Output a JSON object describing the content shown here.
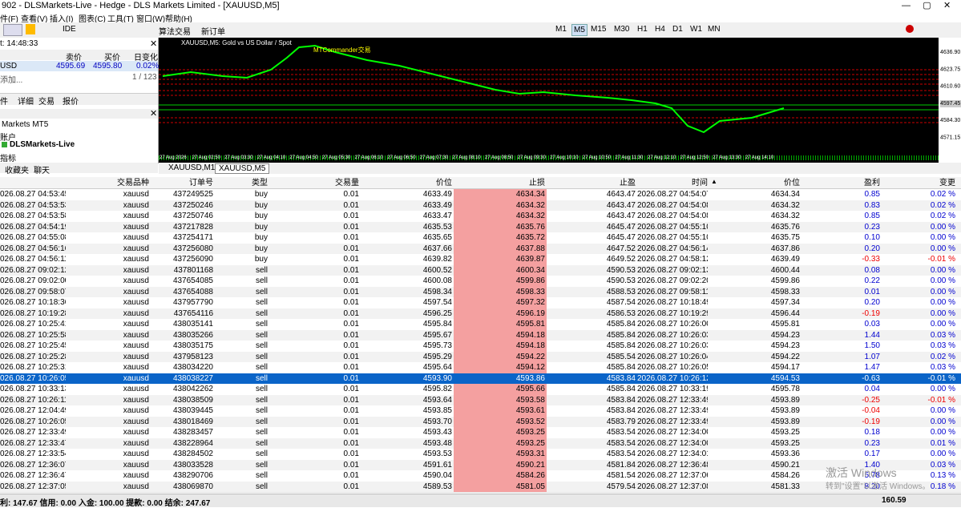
{
  "window": {
    "title": "902 - DLSMarkets-Live - Hedge - DLS Markets Limited - [XAUUSD,M5]"
  },
  "menu": [
    "件(F)",
    "查看(V)",
    "插入(I)",
    "图表(C)",
    "工具(T)",
    "窗口(W)",
    "帮助(H)"
  ],
  "toolbar": {
    "ide": "IDE",
    "algo": "算法交易",
    "new_order": "新订单",
    "timeframes": [
      "M1",
      "M5",
      "M15",
      "M30",
      "H1",
      "H4",
      "D1",
      "W1",
      "MN"
    ]
  },
  "market_watch": {
    "time": "t: 14:48:33",
    "headers": [
      "卖价",
      "买价",
      "日变化"
    ],
    "row": [
      "USD",
      "4595.69",
      "4595.80",
      "0.02%"
    ],
    "add": "添加...",
    "count": "1 / 123",
    "tabs": [
      "件",
      "详细",
      "交易",
      "报价"
    ]
  },
  "navigator": {
    "items": [
      "Markets MT5",
      "账户",
      "DLSMarkets-Live",
      "指标"
    ],
    "tabs": [
      "收藏夹",
      "聊天"
    ]
  },
  "chart": {
    "caption": "XAUUSD,M5:  Gold vs US Dollar / Spot",
    "ea": "MTCommander交易",
    "price_labels": [
      "4636.90",
      "4623.75",
      "4610.60",
      "4597.45",
      "4584.30",
      "4571.15"
    ],
    "time_labels": [
      "27 Aug 2026",
      "27 Aug 02:50",
      "27 Aug 03:30",
      "27 Aug 04:10",
      "27 Aug 04:50",
      "27 Aug 05:30",
      "27 Aug 06:10",
      "27 Aug 06:50",
      "27 Aug 07:30",
      "27 Aug 08:10",
      "27 Aug 08:50",
      "27 Aug 09:30",
      "27 Aug 10:10",
      "27 Aug 10:50",
      "27 Aug 11:30",
      "27 Aug 12:10",
      "27 Aug 12:50",
      "27 Aug 13:30",
      "27 Aug 14:10"
    ],
    "tabs": [
      "XAUUSD,M1",
      "XAUUSD,M5"
    ]
  },
  "table": {
    "headers": [
      "交易品种",
      "订单号",
      "类型",
      "交易量",
      "价位",
      "止损",
      "止盈",
      "时间",
      "价位",
      "盈利",
      "变更"
    ],
    "rows": [
      [
        "026.08.27 04:53:45",
        "xauusd",
        "437249525",
        "buy",
        "0.01",
        "4633.49",
        "4634.34",
        "4643.47",
        "2026.08.27 04:54:07",
        "4634.34",
        "0.85",
        "0.02 %"
      ],
      [
        "026.08.27 04:53:53",
        "xauusd",
        "437250246",
        "buy",
        "0.01",
        "4633.49",
        "4634.32",
        "4643.47",
        "2026.08.27 04:54:08",
        "4634.32",
        "0.83",
        "0.02 %"
      ],
      [
        "026.08.27 04:53:58",
        "xauusd",
        "437250746",
        "buy",
        "0.01",
        "4633.47",
        "4634.32",
        "4643.47",
        "2026.08.27 04:54:08",
        "4634.32",
        "0.85",
        "0.02 %"
      ],
      [
        "026.08.27 04:54:19",
        "xauusd",
        "437217828",
        "buy",
        "0.01",
        "4635.53",
        "4635.76",
        "4645.47",
        "2026.08.27 04:55:10",
        "4635.76",
        "0.23",
        "0.00 %"
      ],
      [
        "026.08.27 04:55:08",
        "xauusd",
        "437254171",
        "buy",
        "0.01",
        "4635.65",
        "4635.72",
        "4645.47",
        "2026.08.27 04:55:10",
        "4635.75",
        "0.10",
        "0.00 %"
      ],
      [
        "026.08.27 04:56:16",
        "xauusd",
        "437256080",
        "buy",
        "0.01",
        "4637.66",
        "4637.88",
        "4647.52",
        "2026.08.27 04:56:14",
        "4637.86",
        "0.20",
        "0.00 %"
      ],
      [
        "026.08.27 04:56:11",
        "xauusd",
        "437256090",
        "buy",
        "0.01",
        "4639.82",
        "4639.87",
        "4649.52",
        "2026.08.27 04:58:12",
        "4639.49",
        "-0.33",
        "-0.01 %"
      ],
      [
        "026.08.27 09:02:12",
        "xauusd",
        "437801168",
        "sell",
        "0.01",
        "4600.52",
        "4600.34",
        "4590.53",
        "2026.08.27 09:02:13",
        "4600.44",
        "0.08",
        "0.00 %"
      ],
      [
        "026.08.27 09:02:00",
        "xauusd",
        "437654085",
        "sell",
        "0.01",
        "4600.08",
        "4599.86",
        "4590.53",
        "2026.08.27 09:02:20",
        "4599.86",
        "0.22",
        "0.00 %"
      ],
      [
        "026.08.27 09:58:07",
        "xauusd",
        "437654088",
        "sell",
        "0.01",
        "4598.34",
        "4598.33",
        "4588.53",
        "2026.08.27 09:58:11",
        "4598.33",
        "0.01",
        "0.00 %"
      ],
      [
        "026.08.27 10:18:36",
        "xauusd",
        "437957790",
        "sell",
        "0.01",
        "4597.54",
        "4597.32",
        "4587.54",
        "2026.08.27 10:18:49",
        "4597.34",
        "0.20",
        "0.00 %"
      ],
      [
        "026.08.27 10:19:28",
        "xauusd",
        "437654116",
        "sell",
        "0.01",
        "4596.25",
        "4596.19",
        "4586.53",
        "2026.08.27 10:19:29",
        "4596.44",
        "-0.19",
        "0.00 %"
      ],
      [
        "026.08.27 10:25:41",
        "xauusd",
        "438035141",
        "sell",
        "0.01",
        "4595.84",
        "4595.81",
        "4585.84",
        "2026.08.27 10:26:00",
        "4595.81",
        "0.03",
        "0.00 %"
      ],
      [
        "026.08.27 10:25:58",
        "xauusd",
        "438035266",
        "sell",
        "0.01",
        "4595.67",
        "4594.18",
        "4585.84",
        "2026.08.27 10:26:03",
        "4594.23",
        "1.44",
        "0.03 %"
      ],
      [
        "026.08.27 10:25:45",
        "xauusd",
        "438035175",
        "sell",
        "0.01",
        "4595.73",
        "4594.18",
        "4585.84",
        "2026.08.27 10:26:03",
        "4594.23",
        "1.50",
        "0.03 %"
      ],
      [
        "026.08.27 10:25:28",
        "xauusd",
        "437958123",
        "sell",
        "0.01",
        "4595.29",
        "4594.22",
        "4585.54",
        "2026.08.27 10:26:04",
        "4594.22",
        "1.07",
        "0.02 %"
      ],
      [
        "026.08.27 10:25:31",
        "xauusd",
        "438034220",
        "sell",
        "0.01",
        "4595.64",
        "4594.12",
        "4585.84",
        "2026.08.27 10:26:05",
        "4594.17",
        "1.47",
        "0.03 %"
      ],
      [
        "026.08.27 10:26:05",
        "xauusd",
        "438038227",
        "sell",
        "0.01",
        "4593.90",
        "4593.86",
        "4583.84",
        "2026.08.27 10:26:12",
        "4594.53",
        "-0.63",
        "-0.01 %"
      ],
      [
        "026.08.27 10:33:13",
        "xauusd",
        "438042262",
        "sell",
        "0.01",
        "4595.82",
        "4595.66",
        "4585.84",
        "2026.08.27 10:33:19",
        "4595.78",
        "0.04",
        "0.00 %"
      ],
      [
        "026.08.27 10:26:11",
        "xauusd",
        "438038509",
        "sell",
        "0.01",
        "4593.64",
        "4593.58",
        "4583.84",
        "2026.08.27 12:33:49",
        "4593.89",
        "-0.25",
        "-0.01 %"
      ],
      [
        "026.08.27 12:04:49",
        "xauusd",
        "438039445",
        "sell",
        "0.01",
        "4593.85",
        "4593.61",
        "4583.84",
        "2026.08.27 12:33:49",
        "4593.89",
        "-0.04",
        "0.00 %"
      ],
      [
        "026.08.27 10:26:05",
        "xauusd",
        "438018469",
        "sell",
        "0.01",
        "4593.70",
        "4593.52",
        "4583.79",
        "2026.08.27 12:33:49",
        "4593.89",
        "-0.19",
        "0.00 %"
      ],
      [
        "026.08.27 12:33:49",
        "xauusd",
        "438283457",
        "sell",
        "0.01",
        "4593.43",
        "4593.25",
        "4583.54",
        "2026.08.27 12:34:00",
        "4593.25",
        "0.18",
        "0.00 %"
      ],
      [
        "026.08.27 12:33:47",
        "xauusd",
        "438228964",
        "sell",
        "0.01",
        "4593.48",
        "4593.25",
        "4583.54",
        "2026.08.27 12:34:00",
        "4593.25",
        "0.23",
        "0.01 %"
      ],
      [
        "026.08.27 12:33:54",
        "xauusd",
        "438284502",
        "sell",
        "0.01",
        "4593.53",
        "4593.31",
        "4583.54",
        "2026.08.27 12:34:01",
        "4593.36",
        "0.17",
        "0.00 %"
      ],
      [
        "026.08.27 12:36:07",
        "xauusd",
        "438033528",
        "sell",
        "0.01",
        "4591.61",
        "4590.21",
        "4581.84",
        "2026.08.27 12:36:48",
        "4590.21",
        "1.40",
        "0.03 %"
      ],
      [
        "026.08.27 12:36:47",
        "xauusd",
        "438290706",
        "sell",
        "0.01",
        "4590.04",
        "4584.26",
        "4581.54",
        "2026.08.27 12:37:06",
        "4584.26",
        "5.78",
        "0.13 %"
      ],
      [
        "026.08.27 12:37:05",
        "xauusd",
        "438069870",
        "sell",
        "0.01",
        "4589.53",
        "4581.05",
        "4579.54",
        "2026.08.27 12:37:08",
        "4581.33",
        "8.20",
        "0.18 %"
      ]
    ],
    "selected_row": 17,
    "summary": "利: 147.67  信用: 0.00  入金: 100.00  提款: 0.00  结余: 247.67",
    "total": "160.59"
  },
  "watermark": {
    "title": "激活 Windows",
    "hint": "转到\"设置\"以激活 Windows。"
  }
}
